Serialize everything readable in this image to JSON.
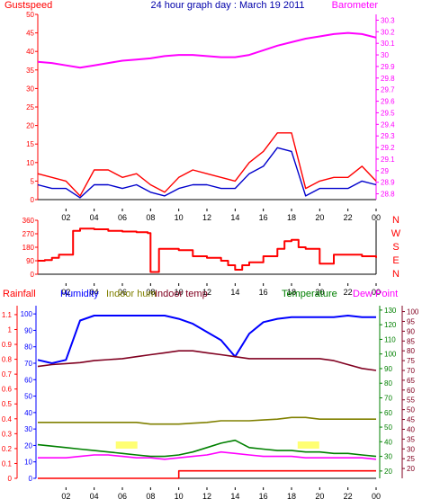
{
  "title": "24 hour graph day : March 19 2011",
  "colors": {
    "gust": "#ff0000",
    "wind": "#0000cc",
    "baro": "#ff00ff",
    "dir": "#ff0000",
    "rain": "#ff0000",
    "humidity": "#0000ff",
    "indoor_hum": "#808000",
    "indoor_temp": "#800020",
    "temp": "#008000",
    "dewpoint": "#ff00ff",
    "daylight": "#ffff00",
    "axis": "#000000"
  },
  "time_ticks": [
    "02",
    "04",
    "06",
    "08",
    "10",
    "12",
    "14",
    "16",
    "18",
    "20",
    "22",
    "00"
  ],
  "chart_data": [
    {
      "type": "line",
      "labels": {
        "left": "Gustspeed",
        "right": "Barometer"
      },
      "left_axis": {
        "ticks": [
          0,
          5,
          10,
          15,
          20,
          25,
          30,
          35,
          40,
          45,
          50
        ],
        "range": [
          0,
          50
        ]
      },
      "right_axis": {
        "ticks": [
          28.8,
          28.9,
          29.0,
          29.1,
          29.2,
          29.3,
          29.4,
          29.5,
          29.6,
          29.7,
          29.8,
          29.9,
          30.0,
          30.1,
          30.2,
          30.3
        ],
        "range": [
          28.75,
          30.35
        ]
      },
      "x": [
        0,
        1,
        2,
        3,
        4,
        5,
        6,
        7,
        8,
        9,
        10,
        11,
        12,
        13,
        14,
        15,
        16,
        17,
        18,
        19,
        20,
        21,
        22,
        23,
        24
      ],
      "series": [
        {
          "key": "gust",
          "axis": "left",
          "values": [
            7,
            6,
            5,
            1,
            8,
            8,
            6,
            7,
            4,
            2,
            6,
            8,
            7,
            6,
            5,
            10,
            13,
            18,
            18,
            3,
            5,
            6,
            6,
            9,
            5
          ]
        },
        {
          "key": "wind",
          "axis": "left",
          "values": [
            4,
            3,
            3,
            0.5,
            4,
            4,
            3,
            4,
            2,
            1,
            3,
            4,
            4,
            3,
            3,
            7,
            9,
            14,
            13,
            1,
            3,
            3,
            3,
            5,
            4
          ]
        },
        {
          "key": "baro",
          "axis": "right",
          "values": [
            29.94,
            29.93,
            29.91,
            29.89,
            29.91,
            29.93,
            29.95,
            29.96,
            29.97,
            29.99,
            30.0,
            30.0,
            29.99,
            29.98,
            29.98,
            30.0,
            30.04,
            30.08,
            30.11,
            30.14,
            30.16,
            30.18,
            30.19,
            30.18,
            30.15
          ]
        }
      ]
    },
    {
      "type": "line",
      "labels": {
        "right": [
          "N",
          "W",
          "S",
          "E",
          "N"
        ]
      },
      "left_axis": {
        "ticks": [
          0,
          90,
          180,
          270,
          360
        ],
        "range": [
          0,
          360
        ]
      },
      "x": [
        0,
        0.5,
        1,
        1.5,
        2,
        2.5,
        3,
        4,
        5,
        6,
        7,
        7.8,
        8,
        8.4,
        8.6,
        9,
        10,
        11,
        12,
        13,
        13.5,
        14,
        14.5,
        15,
        16,
        17,
        17.5,
        18,
        18.5,
        19,
        20,
        21,
        22,
        23,
        24
      ],
      "series": [
        {
          "key": "dir",
          "values": [
            90,
            95,
            110,
            130,
            130,
            290,
            305,
            300,
            290,
            285,
            280,
            275,
            15,
            15,
            170,
            170,
            160,
            120,
            110,
            90,
            60,
            30,
            60,
            80,
            120,
            170,
            220,
            230,
            180,
            170,
            70,
            130,
            130,
            120,
            110
          ]
        }
      ]
    },
    {
      "type": "line",
      "labels": {
        "rain": "Rainfall",
        "humidity": "Humidity",
        "indoor_hum": "Indoor hum",
        "indoor_temp": "Indoor temp",
        "temp": "Temperature",
        "dewpoint": "Dew Point"
      },
      "left_axes": [
        {
          "key": "rain",
          "ticks": [
            0,
            0.1,
            0.2,
            0.3,
            0.4,
            0.5,
            0.6,
            0.7,
            0.8,
            0.9,
            1,
            1.1
          ],
          "range": [
            0,
            1.16
          ]
        },
        {
          "key": "humidity",
          "ticks": [
            0,
            10,
            20,
            30,
            40,
            50,
            60,
            70,
            80,
            90,
            100
          ],
          "range": [
            0,
            105
          ]
        }
      ],
      "right_axes": [
        {
          "key": "temp",
          "ticks": [
            20,
            30,
            40,
            50,
            60,
            70,
            80,
            90,
            100,
            110,
            120,
            130
          ],
          "range": [
            15,
            133
          ]
        },
        {
          "key": "indoor_temp",
          "ticks": [
            20,
            25,
            30,
            35,
            40,
            45,
            50,
            55,
            60,
            65,
            70,
            75,
            80,
            85,
            90,
            95,
            100
          ],
          "range": [
            15,
            103
          ]
        }
      ],
      "x": [
        0,
        1,
        2,
        3,
        4,
        5,
        6,
        7,
        8,
        9,
        10,
        11,
        12,
        13,
        14,
        15,
        16,
        17,
        18,
        19,
        20,
        21,
        22,
        23,
        24
      ],
      "series": [
        {
          "key": "rain",
          "axis": "rain",
          "values": [
            0,
            0,
            0,
            0,
            0,
            0,
            0,
            0,
            0,
            0,
            0.05,
            0.05,
            0.05,
            0.05,
            0.05,
            0.05,
            0.05,
            0.05,
            0.05,
            0.05,
            0.05,
            0.05,
            0.05,
            0.05,
            0.05
          ]
        },
        {
          "key": "humidity",
          "axis": "humidity",
          "values": [
            72,
            70,
            72,
            96,
            99,
            99,
            99,
            99,
            99,
            99,
            97,
            94,
            89,
            84,
            74,
            88,
            95,
            97,
            98,
            98,
            98,
            98,
            99,
            98,
            98
          ]
        },
        {
          "key": "indoor_temp",
          "axis": "indoor_temp",
          "values": [
            72,
            73,
            73.5,
            74,
            75,
            75.5,
            76,
            77,
            78,
            79,
            80,
            80,
            79,
            78,
            77,
            76,
            76,
            76,
            76,
            76,
            76,
            75,
            73,
            71,
            70
          ]
        },
        {
          "key": "indoor_hum",
          "axis": "humidity",
          "values": [
            34,
            34,
            34,
            34,
            34,
            34,
            34,
            34,
            33,
            33,
            33,
            33.5,
            34,
            35,
            35,
            35,
            35.5,
            36,
            37,
            37,
            36,
            36,
            36,
            36,
            36
          ]
        },
        {
          "key": "temp",
          "axis": "temp",
          "values": [
            38,
            37,
            36,
            35,
            34,
            33,
            32,
            31,
            30,
            30,
            31,
            33,
            36,
            39,
            41,
            36,
            35,
            34,
            34,
            33,
            33,
            32,
            32,
            31,
            30
          ]
        },
        {
          "key": "dewpoint",
          "axis": "temp",
          "values": [
            29,
            29,
            29,
            30,
            31,
            31,
            30,
            29,
            29,
            28,
            29,
            30,
            31,
            33,
            32,
            31,
            30,
            30,
            30,
            29,
            29,
            29,
            29,
            29,
            28
          ]
        }
      ],
      "daylight_labels": [
        {
          "x": 6.3
        },
        {
          "x": 19.2
        }
      ]
    }
  ]
}
